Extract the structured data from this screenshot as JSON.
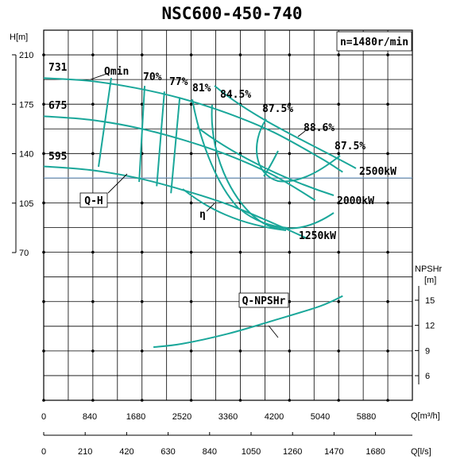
{
  "chart_data": {
    "type": "line",
    "title": "NSC600-450-740",
    "speed_label": "n=1480r/min",
    "x_axis": {
      "label": "Q[m³/h]",
      "range": [
        0,
        6720
      ],
      "ticks": [
        "0",
        "840",
        "1680",
        "2520",
        "3360",
        "4200",
        "5040",
        "5880"
      ]
    },
    "x2_axis": {
      "label": "Q[l/s]",
      "ticks": [
        "0",
        "210",
        "420",
        "630",
        "840",
        "1050",
        "1260",
        "1470",
        "1680"
      ]
    },
    "head_axis": {
      "label": "H[m]",
      "range": [
        70,
        210
      ],
      "ticks": [
        "210",
        "175",
        "140",
        "105",
        "70"
      ]
    },
    "npsh_axis": {
      "label_top": "NPSHr",
      "label_unit": "[m]",
      "ticks": [
        "15",
        "12",
        "9",
        "6"
      ]
    },
    "qh_curves": [
      {
        "label": "731",
        "x": [
          0,
          840,
          1680,
          2520,
          3360,
          4200,
          5040,
          5450
        ],
        "y": [
          193.5,
          191.5,
          186.5,
          179,
          168.5,
          155,
          137,
          127
        ]
      },
      {
        "label": "675",
        "x": [
          0,
          840,
          1680,
          2520,
          3360,
          4200,
          4950
        ],
        "y": [
          166.5,
          164,
          158.5,
          150,
          139,
          124.5,
          107
        ]
      },
      {
        "label": "595",
        "x": [
          0,
          840,
          1680,
          2520,
          3360,
          4200,
          4800
        ],
        "y": [
          131,
          128.5,
          123,
          114.5,
          104,
          90.5,
          80
        ]
      }
    ],
    "efficiency_lines": [
      {
        "label": "70%",
        "x": [
          1840,
          1740
        ],
        "y": [
          188,
          120
        ]
      },
      {
        "label": "77%",
        "x": [
          2200,
          2060
        ],
        "y": [
          184,
          117
        ]
      },
      {
        "label": "81%",
        "x": [
          2480,
          2320
        ],
        "y": [
          180,
          112
        ]
      }
    ],
    "efficiency_labels": [
      "70%",
      "77%",
      "81%",
      "84.5%",
      "87.5%",
      "88.6%",
      "87.5%"
    ],
    "power_lines": [
      "2500kW",
      "2000kW",
      "1250kW"
    ],
    "q_min_label": "Qmin",
    "q_h_label": "Q-H",
    "eta_label": "η",
    "npsh_curve": {
      "label": "Q-NPSHr",
      "x": [
        2000,
        2520,
        3360,
        4200,
        5040,
        5450
      ],
      "y": [
        9.4,
        9.8,
        11.0,
        12.6,
        14.3,
        15.5
      ]
    }
  }
}
